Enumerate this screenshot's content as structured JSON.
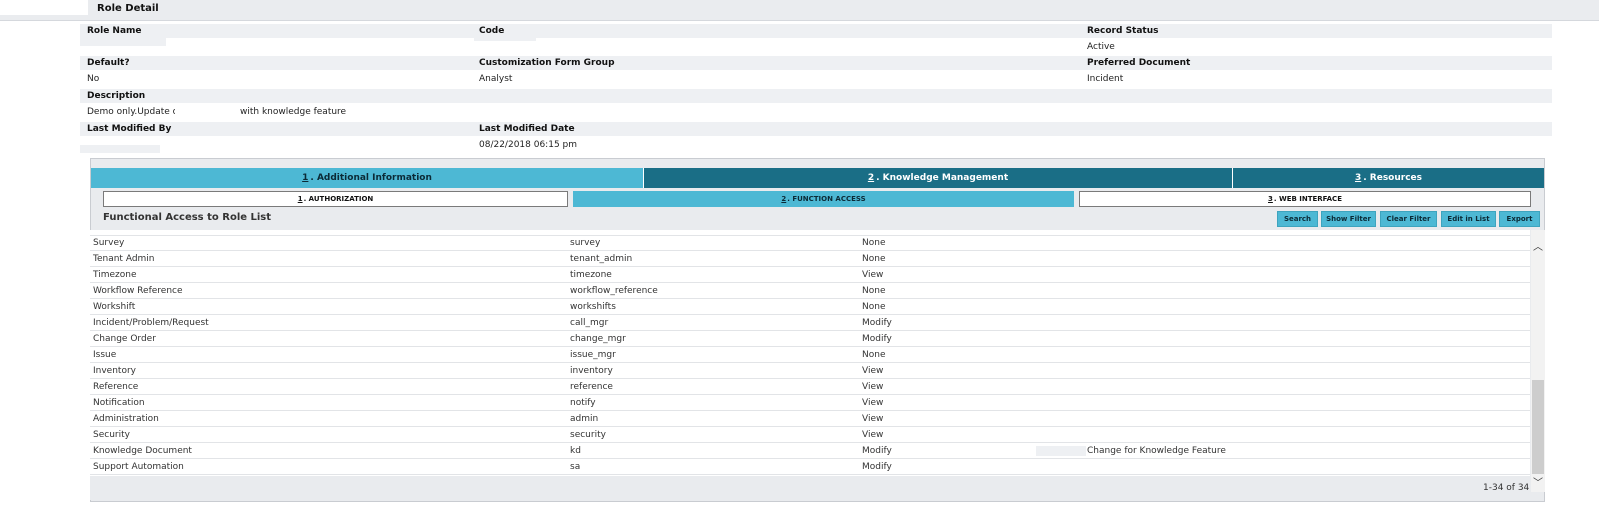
{
  "header": {
    "title": "Role Detail"
  },
  "fields": {
    "role_name_label": "Role Name",
    "code_label": "Code",
    "record_status_label": "Record Status",
    "record_status_value": "Active",
    "default_label": "Default?",
    "default_value": "No",
    "customization_label": "Customization Form Group",
    "customization_value": "Analyst",
    "preferred_doc_label": "Preferred Document",
    "preferred_doc_value": "Incident",
    "description_label": "Description",
    "description_part1": "Demo only.Update of l",
    "description_part2": "with knowledge feature",
    "last_modified_by_label": "Last Modified By",
    "last_modified_date_label": "Last Modified Date",
    "last_modified_date_value": "08/22/2018 06:15 pm"
  },
  "tabs": [
    {
      "num": "1",
      "label": ". Additional Information"
    },
    {
      "num": "2",
      "label": ". Knowledge Management"
    },
    {
      "num": "3",
      "label": ". Resources"
    }
  ],
  "subtabs": [
    {
      "num": "1",
      "label": ". AUTHORIZATION"
    },
    {
      "num": "2",
      "label": ". FUNCTION ACCESS"
    },
    {
      "num": "3",
      "label": ". WEB INTERFACE"
    }
  ],
  "list": {
    "title": "Functional Access to Role List",
    "buttons": {
      "search": "Search",
      "show_filter": "Show Filter",
      "clear_filter": "Clear Filter",
      "edit_in_list": "Edit in List",
      "export": "Export"
    },
    "rows": [
      {
        "name": "Survey",
        "code": "survey",
        "access": "None",
        "comment": ""
      },
      {
        "name": "Tenant Admin",
        "code": "tenant_admin",
        "access": "None",
        "comment": ""
      },
      {
        "name": "Timezone",
        "code": "timezone",
        "access": "View",
        "comment": ""
      },
      {
        "name": "Workflow Reference",
        "code": "workflow_reference",
        "access": "None",
        "comment": ""
      },
      {
        "name": "Workshift",
        "code": "workshifts",
        "access": "None",
        "comment": ""
      },
      {
        "name": "Incident/Problem/Request",
        "code": "call_mgr",
        "access": "Modify",
        "comment": ""
      },
      {
        "name": "Change Order",
        "code": "change_mgr",
        "access": "Modify",
        "comment": ""
      },
      {
        "name": "Issue",
        "code": "issue_mgr",
        "access": "None",
        "comment": ""
      },
      {
        "name": "Inventory",
        "code": "inventory",
        "access": "View",
        "comment": ""
      },
      {
        "name": "Reference",
        "code": "reference",
        "access": "View",
        "comment": ""
      },
      {
        "name": "Notification",
        "code": "notify",
        "access": "View",
        "comment": ""
      },
      {
        "name": "Administration",
        "code": "admin",
        "access": "View",
        "comment": ""
      },
      {
        "name": "Security",
        "code": "security",
        "access": "View",
        "comment": ""
      },
      {
        "name": "Knowledge Document",
        "code": "kd",
        "access": "Modify",
        "comment": "Change for Knowledge Feature"
      },
      {
        "name": "Support Automation",
        "code": "sa",
        "access": "Modify",
        "comment": ""
      }
    ],
    "pagination": "1-34 of 34"
  },
  "icons": {
    "scroll_up": "chevron-up-icon",
    "scroll_down": "chevron-down-icon"
  }
}
